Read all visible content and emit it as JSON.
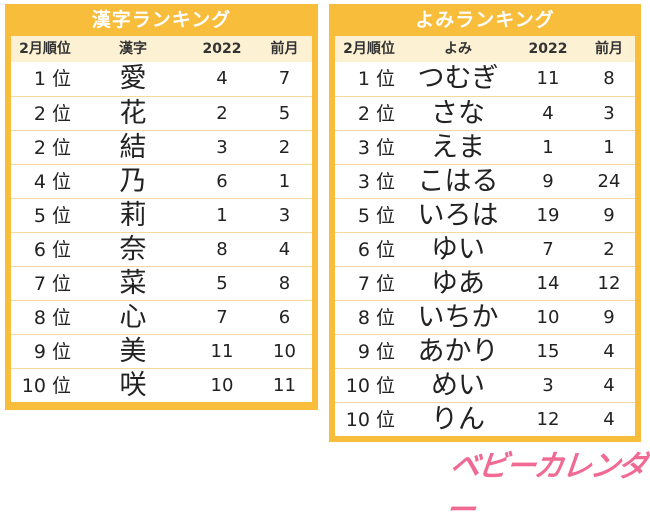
{
  "kanji": {
    "title": "漢字ランキング",
    "headers": [
      "2月順位",
      "漢字",
      "2022",
      "前月"
    ],
    "rank_suffix": "位",
    "rows": [
      {
        "rank": "1",
        "word": "愛",
        "y2022": "4",
        "prev": "7"
      },
      {
        "rank": "2",
        "word": "花",
        "y2022": "2",
        "prev": "5"
      },
      {
        "rank": "2",
        "word": "結",
        "y2022": "3",
        "prev": "2"
      },
      {
        "rank": "4",
        "word": "乃",
        "y2022": "6",
        "prev": "1"
      },
      {
        "rank": "5",
        "word": "莉",
        "y2022": "1",
        "prev": "3"
      },
      {
        "rank": "6",
        "word": "奈",
        "y2022": "8",
        "prev": "4"
      },
      {
        "rank": "7",
        "word": "菜",
        "y2022": "5",
        "prev": "8"
      },
      {
        "rank": "8",
        "word": "心",
        "y2022": "7",
        "prev": "6"
      },
      {
        "rank": "9",
        "word": "美",
        "y2022": "11",
        "prev": "10"
      },
      {
        "rank": "10",
        "word": "咲",
        "y2022": "10",
        "prev": "11"
      }
    ]
  },
  "yomi": {
    "title": "よみランキング",
    "headers": [
      "2月順位",
      "よみ",
      "2022",
      "前月"
    ],
    "rank_suffix": "位",
    "rows": [
      {
        "rank": "1",
        "word": "つむぎ",
        "y2022": "11",
        "prev": "8"
      },
      {
        "rank": "2",
        "word": "さな",
        "y2022": "4",
        "prev": "3"
      },
      {
        "rank": "3",
        "word": "えま",
        "y2022": "1",
        "prev": "1"
      },
      {
        "rank": "3",
        "word": "こはる",
        "y2022": "9",
        "prev": "24"
      },
      {
        "rank": "5",
        "word": "いろは",
        "y2022": "19",
        "prev": "9"
      },
      {
        "rank": "6",
        "word": "ゆい",
        "y2022": "7",
        "prev": "2"
      },
      {
        "rank": "7",
        "word": "ゆあ",
        "y2022": "14",
        "prev": "12"
      },
      {
        "rank": "8",
        "word": "いちか",
        "y2022": "10",
        "prev": "9"
      },
      {
        "rank": "9",
        "word": "あかり",
        "y2022": "15",
        "prev": "4"
      },
      {
        "rank": "10",
        "word": "めい",
        "y2022": "3",
        "prev": "4"
      },
      {
        "rank": "10",
        "word": "りん",
        "y2022": "12",
        "prev": "4"
      }
    ]
  },
  "logo": "ベビーカレンダー",
  "colors": {
    "panel": "#f7bd3b",
    "header_row": "#fdf1d4",
    "logo": "#f06a93"
  }
}
